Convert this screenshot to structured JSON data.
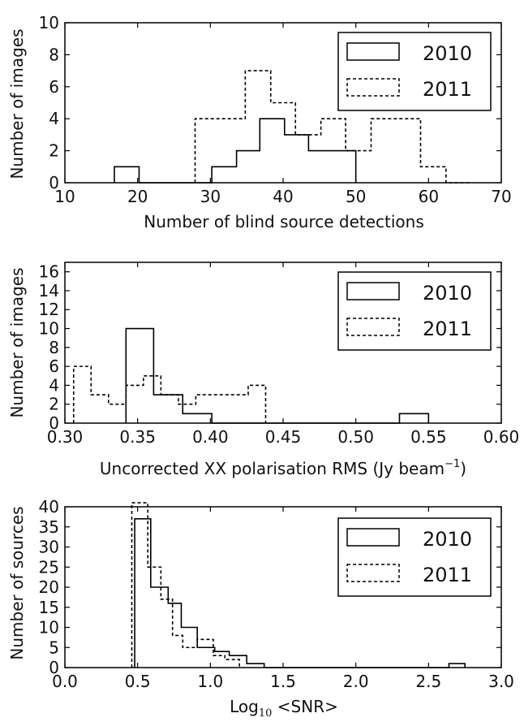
{
  "chart_data": [
    {
      "type": "histogram",
      "xlabel": "Number of blind source detections",
      "ylabel": "Number of images",
      "xlim": [
        10,
        70
      ],
      "ylim": [
        0,
        10
      ],
      "xticks": [
        "10",
        "20",
        "30",
        "40",
        "50",
        "60",
        "70"
      ],
      "yticks": [
        "0",
        "2",
        "4",
        "6",
        "8",
        "10"
      ],
      "legend_position": "top-right",
      "series": [
        {
          "name": "2010",
          "style": "solid",
          "bin_edges": [
            16.8,
            20.2,
            30.2,
            33.6,
            36.8,
            40.2,
            43.5,
            46.8,
            50.0
          ],
          "counts": [
            1,
            0,
            1,
            2,
            4,
            3,
            2,
            2
          ]
        },
        {
          "name": "2011",
          "style": "dashed",
          "bin_edges": [
            27.9,
            34.8,
            38.3,
            41.7,
            45.2,
            48.6,
            52.1,
            58.9,
            62.4,
            65.8
          ],
          "counts": [
            4,
            7,
            5,
            3,
            4,
            2,
            4,
            1,
            0
          ]
        }
      ]
    },
    {
      "type": "histogram",
      "xlabel": "Uncorrected XX polarisation RMS (Jy beam",
      "xlabel_sup": "−1",
      "xlabel_tail": ")",
      "ylabel": "Number of images",
      "xlim": [
        0.3,
        0.6
      ],
      "ylim": [
        0,
        17
      ],
      "xticks": [
        "0.30",
        "0.35",
        "0.40",
        "0.45",
        "0.50",
        "0.55",
        "0.60"
      ],
      "yticks": [
        "0",
        "2",
        "4",
        "6",
        "8",
        "10",
        "12",
        "14",
        "16"
      ],
      "legend_position": "top-right",
      "series": [
        {
          "name": "2010",
          "style": "solid",
          "bin_edges": [
            0.342,
            0.361,
            0.381,
            0.401,
            0.53,
            0.55
          ],
          "counts": [
            10,
            3,
            1,
            0,
            1
          ]
        },
        {
          "name": "2011",
          "style": "dashed",
          "bin_edges": [
            0.306,
            0.318,
            0.33,
            0.342,
            0.354,
            0.366,
            0.378,
            0.39,
            0.402,
            0.414,
            0.426,
            0.438
          ],
          "counts": [
            6,
            3,
            2,
            4,
            5,
            3,
            2,
            3,
            3,
            3,
            4
          ]
        }
      ]
    },
    {
      "type": "histogram",
      "xlabel_pre": "Log",
      "xlabel_sub": "10",
      "xlabel": " <SNR>",
      "ylabel": "Number of sources",
      "xlim": [
        0.0,
        3.0
      ],
      "ylim": [
        0,
        40
      ],
      "xticks": [
        "0.0",
        "0.5",
        "1.0",
        "1.5",
        "2.0",
        "2.5",
        "3.0"
      ],
      "yticks": [
        "0",
        "5",
        "10",
        "15",
        "20",
        "25",
        "30",
        "35",
        "40"
      ],
      "legend_position": "top-right",
      "series": [
        {
          "name": "2010",
          "style": "solid",
          "bin_edges": [
            0.48,
            0.59,
            0.71,
            0.8,
            0.91,
            1.03,
            1.13,
            1.25,
            1.37,
            1.49,
            2.64,
            2.75
          ],
          "counts": [
            37,
            20,
            16,
            10,
            5,
            4,
            3,
            1,
            0,
            0,
            1
          ]
        },
        {
          "name": "2011",
          "style": "dashed",
          "bin_edges": [
            0.46,
            0.49,
            0.57,
            0.66,
            0.74,
            0.81,
            0.91,
            1.02,
            1.1,
            1.2
          ],
          "counts": [
            41,
            41,
            25,
            17,
            8,
            5,
            7,
            3,
            2
          ]
        }
      ]
    }
  ]
}
